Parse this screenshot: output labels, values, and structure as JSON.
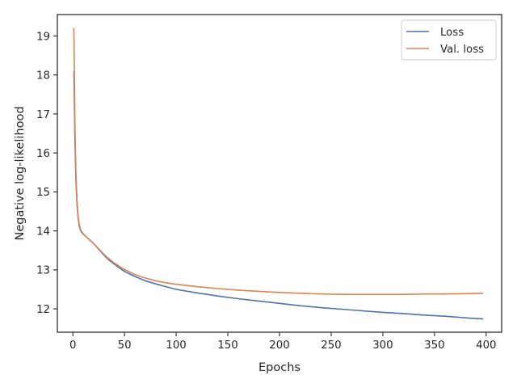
{
  "chart_data": {
    "type": "line",
    "title": "",
    "xlabel": "Epochs",
    "ylabel": "Negative log-likelihood",
    "xlim": [
      -15,
      415
    ],
    "ylim": [
      11.4,
      19.55
    ],
    "xticks": [
      0,
      50,
      100,
      150,
      200,
      250,
      300,
      350,
      400
    ],
    "yticks": [
      12,
      13,
      14,
      15,
      16,
      17,
      18,
      19
    ],
    "grid": false,
    "legend_position": "top-right",
    "series": [
      {
        "name": "Loss",
        "color": "#4c72b0",
        "x": [
          1,
          2,
          3,
          4,
          5,
          6,
          7,
          8,
          10,
          12,
          15,
          20,
          25,
          30,
          35,
          40,
          45,
          50,
          60,
          70,
          80,
          90,
          100,
          120,
          140,
          160,
          180,
          200,
          220,
          240,
          260,
          280,
          300,
          320,
          340,
          360,
          380,
          397
        ],
        "y": [
          18.1,
          16.4,
          15.3,
          14.7,
          14.35,
          14.15,
          14.05,
          13.98,
          13.92,
          13.87,
          13.8,
          13.68,
          13.53,
          13.38,
          13.25,
          13.15,
          13.05,
          12.96,
          12.83,
          12.72,
          12.64,
          12.57,
          12.5,
          12.41,
          12.33,
          12.26,
          12.2,
          12.14,
          12.08,
          12.03,
          11.99,
          11.95,
          11.91,
          11.88,
          11.84,
          11.81,
          11.77,
          11.74
        ]
      },
      {
        "name": "Val. loss",
        "color": "#dd8452",
        "x": [
          1,
          2,
          3,
          4,
          5,
          6,
          7,
          8,
          10,
          12,
          15,
          20,
          25,
          30,
          35,
          40,
          45,
          50,
          60,
          70,
          80,
          90,
          100,
          120,
          140,
          160,
          180,
          200,
          220,
          240,
          260,
          280,
          300,
          320,
          340,
          360,
          380,
          397
        ],
        "y": [
          19.2,
          16.8,
          15.5,
          14.8,
          14.4,
          14.2,
          14.08,
          14.0,
          13.93,
          13.87,
          13.8,
          13.68,
          13.54,
          13.4,
          13.28,
          13.18,
          13.09,
          13.01,
          12.88,
          12.79,
          12.72,
          12.67,
          12.63,
          12.57,
          12.52,
          12.48,
          12.45,
          12.42,
          12.4,
          12.38,
          12.37,
          12.37,
          12.37,
          12.37,
          12.38,
          12.38,
          12.39,
          12.4
        ]
      }
    ]
  }
}
